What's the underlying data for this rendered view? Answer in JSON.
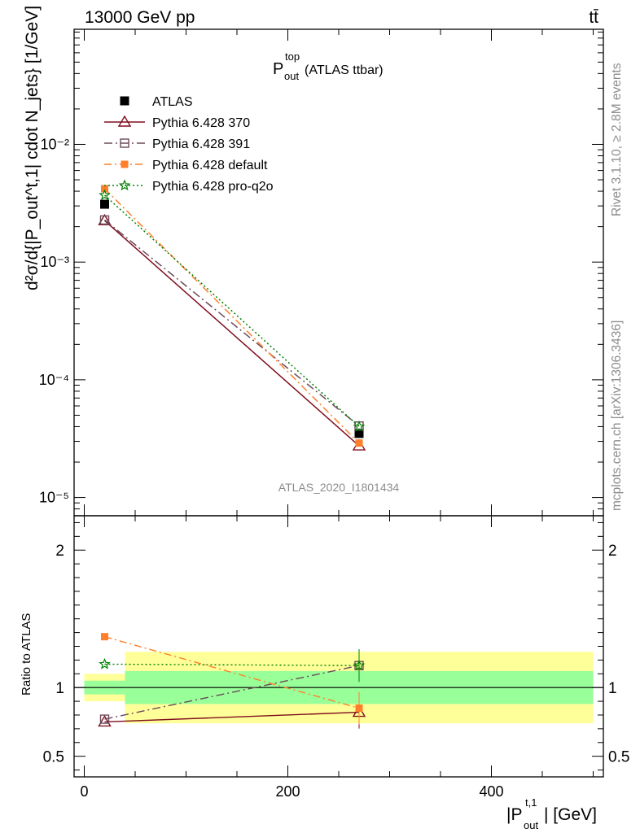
{
  "header": {
    "left": "13000 GeV pp",
    "right": "tt̄"
  },
  "plot_title": {
    "main": "P",
    "sup": "top",
    "sub": "out",
    "suffix": " (ATLAS ttbar)"
  },
  "side_labels": {
    "rivet": "Rivet 3.1.10, ≥ 2.8M events",
    "mcplots": "mcplots.cern.ch [arXiv:1306.3436]"
  },
  "watermark": "ATLAS_2020_I1801434",
  "ylabel_top": "d²σ/d{|P_out^t,1| cdot N_jets} [1/GeV]",
  "ylabel_bottom": "Ratio to ATLAS",
  "xlabel": {
    "main": "|P",
    "sup": "t,1",
    "sub": "out",
    "suffix": "| [GeV]"
  },
  "colors": {
    "atlas": "#000000",
    "p370": "#7f0e1e",
    "p391": "#6b4a5a",
    "pdefault": "#ff7f2a",
    "pq2o": "#008000",
    "band_inner": "#99ff99",
    "band_outer": "#ffff99"
  },
  "chart_data": [
    {
      "type": "line",
      "yscale": "log",
      "xlim": [
        -10,
        510
      ],
      "ylim": [
        7e-06,
        0.095
      ],
      "legend": "top-left",
      "ytick_labels": [
        "10⁻⁵",
        "10⁻⁴",
        "10⁻³",
        "10⁻²"
      ],
      "x": [
        20,
        270
      ],
      "series": [
        {
          "name": "ATLAS",
          "values": [
            0.0031,
            3.5e-05
          ],
          "style": "data"
        },
        {
          "name": "Pythia 6.428 370",
          "values": [
            0.00225,
            2.75e-05
          ],
          "style": "triangle"
        },
        {
          "name": "Pythia 6.428 391",
          "values": [
            0.00228,
            4.05e-05
          ],
          "style": "square-open"
        },
        {
          "name": "Pythia 6.428 default",
          "values": [
            0.0042,
            2.9e-05
          ],
          "style": "square-filled"
        },
        {
          "name": "Pythia 6.428 pro-q2o",
          "values": [
            0.0037,
            4e-05
          ],
          "style": "star"
        }
      ]
    },
    {
      "type": "line",
      "xlim": [
        -10,
        510
      ],
      "ylim": [
        0.35,
        2.25
      ],
      "ylabel": "Ratio to ATLAS",
      "yticks": [
        0.5,
        1,
        2
      ],
      "ytick_labels": [
        "0.5",
        "1",
        "2"
      ],
      "xticks": [
        0,
        200,
        400
      ],
      "xtick_labels": [
        "0",
        "200",
        "400"
      ],
      "x": [
        20,
        270
      ],
      "bands": [
        {
          "x0": 0,
          "x1": 40,
          "inner": [
            0.95,
            1.05
          ],
          "outer": [
            0.9,
            1.1
          ]
        },
        {
          "x0": 40,
          "x1": 500,
          "inner": [
            0.88,
            1.12
          ],
          "outer": [
            0.74,
            1.26
          ]
        }
      ],
      "series": [
        {
          "name": "Pythia 6.428 370",
          "values": [
            0.75,
            0.82
          ]
        },
        {
          "name": "Pythia 6.428 391",
          "values": [
            0.77,
            1.16
          ]
        },
        {
          "name": "Pythia 6.428 default",
          "values": [
            1.37,
            0.85
          ]
        },
        {
          "name": "Pythia 6.428 pro-q2o",
          "values": [
            1.17,
            1.16
          ]
        }
      ]
    }
  ]
}
